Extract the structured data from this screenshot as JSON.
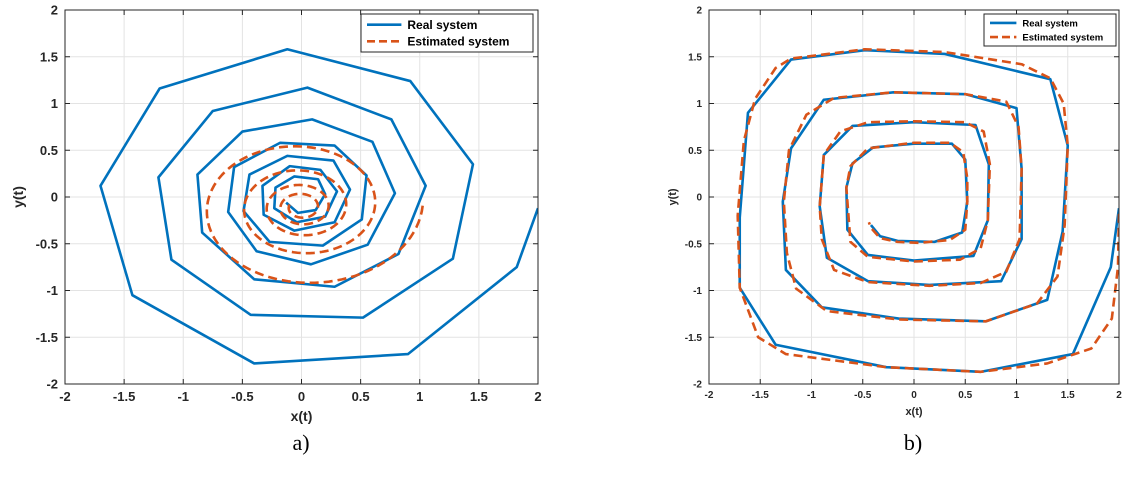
{
  "colors": {
    "real": "#0072BD",
    "estimated": "#D95319"
  },
  "chart_data": [
    {
      "type": "line",
      "caption": "a)",
      "xlabel": "x(t)",
      "ylabel": "y(t)",
      "xlim": [
        -2,
        2
      ],
      "ylim": [
        -2,
        2
      ],
      "xticks": [
        -2,
        -1.5,
        -1,
        -0.5,
        0,
        0.5,
        1,
        1.5,
        2
      ],
      "yticks": [
        -2,
        -1.5,
        -1,
        -0.5,
        0,
        0.5,
        1,
        1.5,
        2
      ],
      "grid": true,
      "legend_position": "top-right",
      "series": [
        {
          "name": "Real system",
          "style": "solid",
          "points": [
            [
              2.0,
              -0.12
            ],
            [
              1.82,
              -0.75
            ],
            [
              0.9,
              -1.68
            ],
            [
              -0.4,
              -1.78
            ],
            [
              -1.43,
              -1.05
            ],
            [
              -1.7,
              0.12
            ],
            [
              -1.2,
              1.16
            ],
            [
              -0.12,
              1.58
            ],
            [
              0.92,
              1.24
            ],
            [
              1.45,
              0.35
            ],
            [
              1.28,
              -0.66
            ],
            [
              0.52,
              -1.29
            ],
            [
              -0.43,
              -1.26
            ],
            [
              -1.1,
              -0.67
            ],
            [
              -1.21,
              0.21
            ],
            [
              -0.75,
              0.92
            ],
            [
              0.05,
              1.17
            ],
            [
              0.76,
              0.83
            ],
            [
              1.05,
              0.12
            ],
            [
              0.82,
              -0.61
            ],
            [
              0.28,
              -0.96
            ],
            [
              -0.4,
              -0.88
            ],
            [
              -0.84,
              -0.38
            ],
            [
              -0.88,
              0.24
            ],
            [
              -0.5,
              0.7
            ],
            [
              0.09,
              0.83
            ],
            [
              0.6,
              0.59
            ],
            [
              0.79,
              0.04
            ],
            [
              0.56,
              -0.51
            ],
            [
              0.08,
              -0.72
            ],
            [
              -0.38,
              -0.58
            ],
            [
              -0.62,
              -0.16
            ],
            [
              -0.57,
              0.32
            ],
            [
              -0.18,
              0.58
            ],
            [
              0.28,
              0.55
            ],
            [
              0.55,
              0.23
            ],
            [
              0.51,
              -0.24
            ],
            [
              0.18,
              -0.52
            ],
            [
              -0.27,
              -0.48
            ],
            [
              -0.49,
              -0.15
            ],
            [
              -0.44,
              0.24
            ],
            [
              -0.12,
              0.44
            ],
            [
              0.27,
              0.39
            ],
            [
              0.41,
              0.08
            ],
            [
              0.28,
              -0.27
            ],
            [
              -0.06,
              -0.36
            ],
            [
              -0.32,
              -0.19
            ],
            [
              -0.33,
              0.12
            ],
            [
              -0.1,
              0.33
            ],
            [
              0.16,
              0.29
            ],
            [
              0.3,
              0.06
            ],
            [
              0.2,
              -0.21
            ],
            [
              -0.04,
              -0.27
            ],
            [
              -0.23,
              -0.12
            ],
            [
              -0.22,
              0.1
            ],
            [
              -0.06,
              0.22
            ],
            [
              0.14,
              0.19
            ],
            [
              0.2,
              0.03
            ],
            [
              0.12,
              -0.14
            ],
            [
              -0.03,
              -0.17
            ],
            [
              -0.13,
              -0.06
            ]
          ]
        },
        {
          "name": "Estimated system",
          "style": "dashed",
          "spiral": {
            "t_start": -0.1,
            "t_end": 4.5,
            "r0": 0.1,
            "decay": 0.5,
            "sx": 0.68,
            "cy": -0.11,
            "width_factor": 1.08
          }
        }
      ]
    },
    {
      "type": "line",
      "caption": "b)",
      "xlabel": "x(t)",
      "ylabel": "y(t)",
      "xlim": [
        -2,
        2
      ],
      "ylim": [
        -2,
        2
      ],
      "xticks": [
        -2,
        -1.5,
        -1,
        -0.5,
        0,
        0.5,
        1,
        1.5,
        2
      ],
      "yticks": [
        -2,
        -1.5,
        -1,
        -0.5,
        0,
        0.5,
        1,
        1.5,
        2
      ],
      "grid": true,
      "legend_position": "top-right",
      "series": [
        {
          "name": "Real system",
          "style": "solid",
          "points": [
            [
              2.0,
              -0.12
            ],
            [
              1.92,
              -0.75
            ],
            [
              1.55,
              -1.68
            ],
            [
              0.65,
              -1.87
            ],
            [
              -0.27,
              -1.82
            ],
            [
              -1.35,
              -1.58
            ],
            [
              -1.7,
              -0.97
            ],
            [
              -1.7,
              -0.22
            ],
            [
              -1.62,
              0.9
            ],
            [
              -1.2,
              1.47
            ],
            [
              -0.48,
              1.57
            ],
            [
              0.3,
              1.53
            ],
            [
              1.33,
              1.26
            ],
            [
              1.5,
              0.55
            ],
            [
              1.45,
              -0.37
            ],
            [
              1.3,
              -1.1
            ],
            [
              0.7,
              -1.33
            ],
            [
              -0.15,
              -1.3
            ],
            [
              -0.9,
              -1.18
            ],
            [
              -1.25,
              -0.78
            ],
            [
              -1.28,
              -0.05
            ],
            [
              -1.2,
              0.52
            ],
            [
              -0.88,
              1.04
            ],
            [
              -0.2,
              1.12
            ],
            [
              0.5,
              1.1
            ],
            [
              1.0,
              0.95
            ],
            [
              1.05,
              0.3
            ],
            [
              1.05,
              -0.45
            ],
            [
              0.85,
              -0.9
            ],
            [
              0.15,
              -0.94
            ],
            [
              -0.45,
              -0.9
            ],
            [
              -0.85,
              -0.65
            ],
            [
              -0.92,
              -0.1
            ],
            [
              -0.88,
              0.45
            ],
            [
              -0.6,
              0.76
            ],
            [
              0.0,
              0.8
            ],
            [
              0.6,
              0.77
            ],
            [
              0.73,
              0.35
            ],
            [
              0.72,
              -0.25
            ],
            [
              0.58,
              -0.63
            ],
            [
              0.0,
              -0.68
            ],
            [
              -0.45,
              -0.62
            ],
            [
              -0.65,
              -0.35
            ],
            [
              -0.66,
              0.1
            ],
            [
              -0.6,
              0.36
            ],
            [
              -0.4,
              0.53
            ],
            [
              0.0,
              0.57
            ],
            [
              0.37,
              0.57
            ],
            [
              0.5,
              0.4
            ],
            [
              0.52,
              -0.05
            ],
            [
              0.47,
              -0.38
            ],
            [
              0.2,
              -0.48
            ],
            [
              -0.16,
              -0.47
            ],
            [
              -0.33,
              -0.42
            ],
            [
              -0.42,
              -0.3
            ]
          ]
        },
        {
          "name": "Estimated system",
          "style": "dashed",
          "points": [
            [
              2.0,
              -0.18
            ],
            [
              1.99,
              -0.75
            ],
            [
              1.93,
              -1.3
            ],
            [
              1.73,
              -1.62
            ],
            [
              1.3,
              -1.78
            ],
            [
              0.65,
              -1.87
            ],
            [
              -0.27,
              -1.82
            ],
            [
              -1.25,
              -1.68
            ],
            [
              -1.52,
              -1.5
            ],
            [
              -1.7,
              -0.97
            ],
            [
              -1.72,
              -0.2
            ],
            [
              -1.66,
              0.6
            ],
            [
              -1.55,
              1.05
            ],
            [
              -1.35,
              1.38
            ],
            [
              -1.2,
              1.48
            ],
            [
              -0.48,
              1.58
            ],
            [
              0.3,
              1.55
            ],
            [
              1.05,
              1.42
            ],
            [
              1.33,
              1.27
            ],
            [
              1.46,
              1.0
            ],
            [
              1.5,
              0.55
            ],
            [
              1.47,
              -0.3
            ],
            [
              1.4,
              -0.85
            ],
            [
              1.2,
              -1.14
            ],
            [
              0.7,
              -1.33
            ],
            [
              -0.15,
              -1.31
            ],
            [
              -0.85,
              -1.22
            ],
            [
              -1.15,
              -0.98
            ],
            [
              -1.24,
              -0.6
            ],
            [
              -1.27,
              -0.05
            ],
            [
              -1.22,
              0.5
            ],
            [
              -1.05,
              0.88
            ],
            [
              -0.78,
              1.06
            ],
            [
              -0.2,
              1.12
            ],
            [
              0.5,
              1.1
            ],
            [
              0.9,
              1.02
            ],
            [
              1.02,
              0.75
            ],
            [
              1.05,
              0.3
            ],
            [
              1.03,
              -0.45
            ],
            [
              0.9,
              -0.8
            ],
            [
              0.65,
              -0.92
            ],
            [
              0.15,
              -0.95
            ],
            [
              -0.45,
              -0.91
            ],
            [
              -0.78,
              -0.78
            ],
            [
              -0.9,
              -0.45
            ],
            [
              -0.92,
              -0.1
            ],
            [
              -0.88,
              0.45
            ],
            [
              -0.72,
              0.7
            ],
            [
              -0.45,
              0.8
            ],
            [
              0.0,
              0.81
            ],
            [
              0.5,
              0.8
            ],
            [
              0.68,
              0.7
            ],
            [
              0.74,
              0.35
            ],
            [
              0.72,
              -0.25
            ],
            [
              0.65,
              -0.55
            ],
            [
              0.45,
              -0.67
            ],
            [
              0.0,
              -0.69
            ],
            [
              -0.45,
              -0.64
            ],
            [
              -0.62,
              -0.48
            ],
            [
              -0.66,
              0.1
            ],
            [
              -0.62,
              0.33
            ],
            [
              -0.45,
              0.52
            ],
            [
              0.0,
              0.58
            ],
            [
              0.35,
              0.58
            ],
            [
              0.48,
              0.48
            ],
            [
              0.52,
              0.2
            ],
            [
              0.52,
              -0.05
            ],
            [
              0.5,
              -0.35
            ],
            [
              0.35,
              -0.46
            ],
            [
              0.05,
              -0.49
            ],
            [
              -0.16,
              -0.48
            ],
            [
              -0.33,
              -0.44
            ],
            [
              -0.42,
              -0.33
            ],
            [
              -0.44,
              -0.27
            ]
          ]
        }
      ]
    }
  ]
}
